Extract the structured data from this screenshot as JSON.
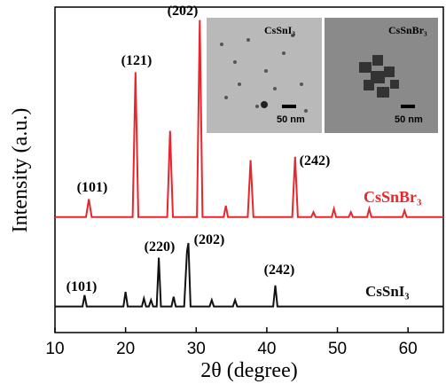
{
  "chart_data": {
    "type": "line",
    "xlabel": "2θ (degree)",
    "ylabel": "Intensity (a.u.)",
    "xlim": [
      10,
      65
    ],
    "xticks": [
      10,
      20,
      30,
      40,
      50,
      60
    ],
    "ylim": [
      0,
      100
    ],
    "series": [
      {
        "name": "CsSnBr₃",
        "color": "#e8262b",
        "x": [
          10,
          14.4,
          14.8,
          15.2,
          21.0,
          21.4,
          21.8,
          25.9,
          26.3,
          26.7,
          30.1,
          30.5,
          30.9,
          33.9,
          34.2,
          34.5,
          37.3,
          37.7,
          38.1,
          43.6,
          44.0,
          44.4,
          46.3,
          46.6,
          46.9,
          49.2,
          49.5,
          49.8,
          51.6,
          51.9,
          52.2,
          54.2,
          54.5,
          54.8,
          59.2,
          59.5,
          59.8,
          65
        ],
        "values": [
          35.5,
          35.5,
          41,
          35.5,
          35.5,
          80,
          35.5,
          35.5,
          62,
          35.5,
          35.5,
          96,
          35.5,
          35.5,
          39,
          35.5,
          35.5,
          53,
          35.5,
          35.5,
          54,
          35.5,
          35.5,
          37,
          35.5,
          35.5,
          38,
          35.5,
          35.5,
          37,
          35.5,
          35.5,
          38,
          35.5,
          35.5,
          37.5,
          35.5,
          35.5
        ]
      },
      {
        "name": "CsSnI₃",
        "color": "#111111",
        "x": [
          10,
          13.9,
          14.2,
          14.5,
          19.7,
          20.0,
          20.3,
          22.3,
          22.6,
          22.9,
          23.3,
          23.6,
          23.9,
          24.4,
          24.7,
          25.0,
          26.5,
          26.8,
          27.1,
          28.3,
          28.7,
          28.9,
          29.2,
          31.9,
          32.2,
          32.5,
          35.2,
          35.5,
          35.8,
          40.9,
          41.2,
          41.5,
          65
        ],
        "values": [
          8,
          8,
          11.5,
          8,
          8,
          12.5,
          8,
          8,
          10.5,
          8,
          8,
          10,
          8,
          8,
          23,
          8,
          8,
          11,
          8,
          8,
          25,
          27.5,
          8,
          8,
          10,
          8,
          8,
          10,
          8,
          8,
          14.5,
          8,
          8
        ]
      }
    ],
    "annotations": [
      "(101)",
      "(121)",
      "(202)",
      "(242)",
      "(101)",
      "(220)",
      "(202)",
      "(242)"
    ],
    "insets": [
      {
        "label": "CsSnI₃",
        "scale": "50 nm"
      },
      {
        "label": "CsSnBr₃",
        "scale": "50 nm"
      }
    ]
  }
}
